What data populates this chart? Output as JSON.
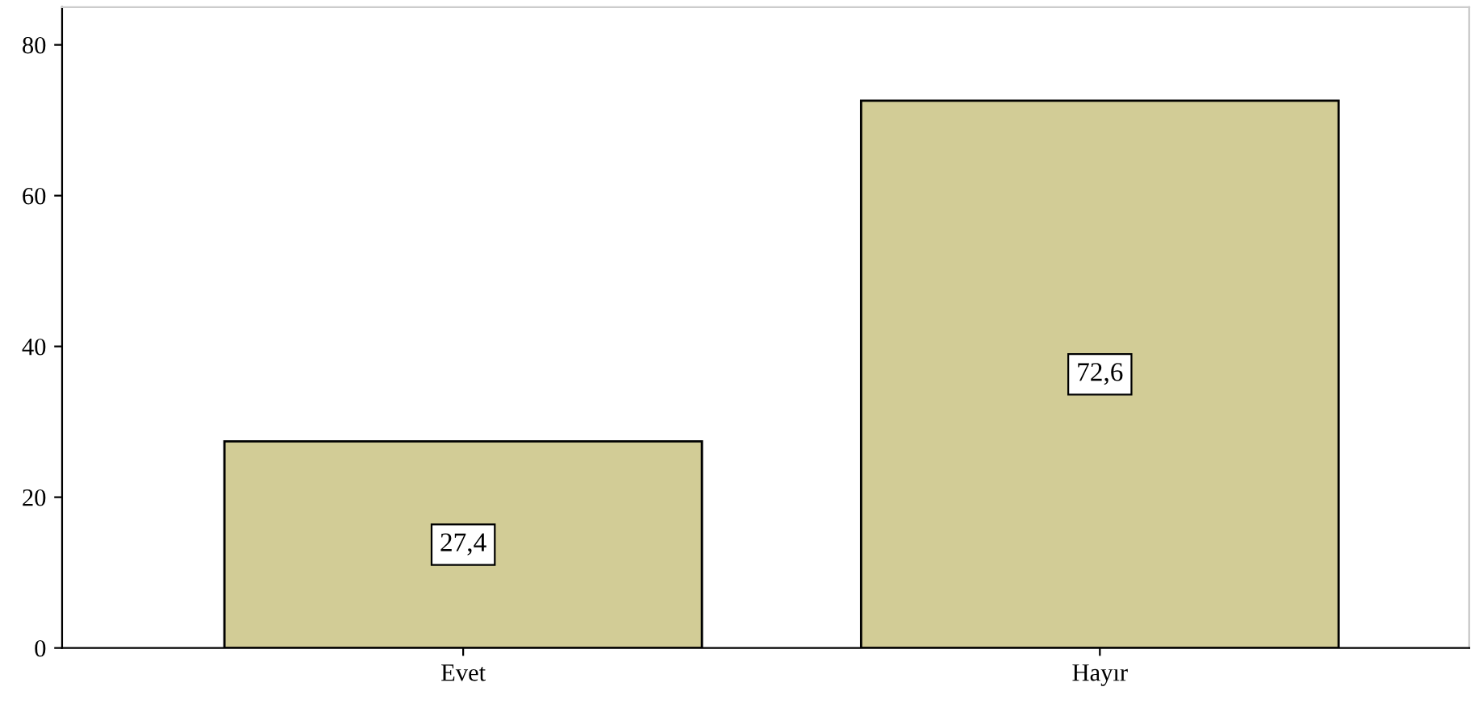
{
  "chart_data": {
    "type": "bar",
    "categories": [
      "Evet",
      "Hayır"
    ],
    "values": [
      27.4,
      72.6
    ],
    "color": "#d2cc96",
    "value_labels": [
      "27,4",
      "72,6"
    ],
    "ylim": [
      0,
      85
    ],
    "yticks": [
      0,
      20,
      40,
      60,
      80
    ],
    "grid": false
  }
}
